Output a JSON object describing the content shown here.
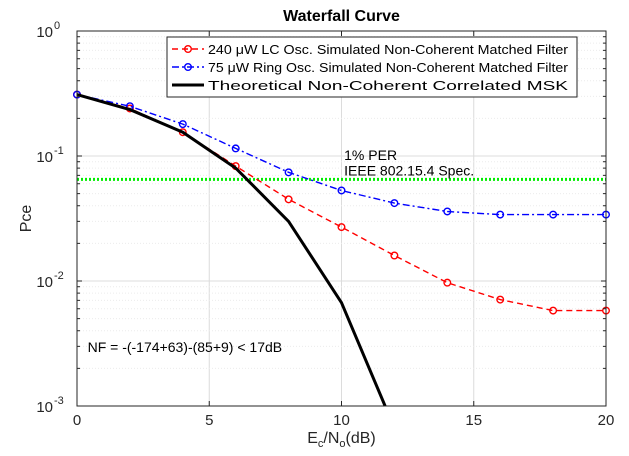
{
  "chart_data": {
    "type": "line",
    "title": "Waterfall Curve",
    "xlabel": {
      "main": "E",
      "sub1": "c",
      "mid": "/N",
      "sub2": "o",
      "tail": "(dB)"
    },
    "ylabel": "Pce",
    "xlim": [
      0,
      20
    ],
    "ylim": [
      0.001,
      1
    ],
    "yscale": "log",
    "grid": true,
    "legend_position": "top-right",
    "x_ticks": [
      "0",
      "5",
      "10",
      "15",
      "20"
    ],
    "y_ticks": [
      {
        "base": "10",
        "exp": "0",
        "value": 1
      },
      {
        "base": "10",
        "exp": "-1",
        "value": 0.1
      },
      {
        "base": "10",
        "exp": "-2",
        "value": 0.01
      },
      {
        "base": "10",
        "exp": "-3",
        "value": 0.001
      }
    ],
    "series": [
      {
        "name": "240 μW LC Osc. Simulated Non-Coherent Matched Filter",
        "color": "#ff0000",
        "dash": "dashed",
        "marker": "circle",
        "x": [
          0,
          2,
          4,
          6,
          8,
          10,
          12,
          14,
          16,
          18,
          20
        ],
        "y": [
          0.31,
          0.24,
          0.155,
          0.083,
          0.045,
          0.027,
          0.016,
          0.0097,
          0.0071,
          0.0058,
          0.0058
        ]
      },
      {
        "name": "75 μW Ring Osc. Simulated Non-Coherent Matched Filter",
        "color": "#0000ff",
        "dash": "dashdot",
        "marker": "circle",
        "x": [
          0,
          2,
          4,
          6,
          8,
          10,
          12,
          14,
          16,
          18,
          20
        ],
        "y": [
          0.31,
          0.25,
          0.18,
          0.115,
          0.074,
          0.053,
          0.042,
          0.036,
          0.034,
          0.034,
          0.034
        ]
      },
      {
        "name": "Theoretical Non-Coherent Correlated MSK",
        "color": "#000000",
        "dash": "solid",
        "marker": "none",
        "x": [
          0,
          2,
          4,
          6,
          8,
          10,
          11.65
        ],
        "y": [
          0.31,
          0.235,
          0.155,
          0.08,
          0.03,
          0.0067,
          0.001
        ]
      }
    ],
    "reference_line": {
      "y": 0.065,
      "color": "#00ee00",
      "style": "dotted"
    },
    "annotations": [
      {
        "id": "per",
        "text": "1% PER",
        "x": 10.1,
        "y": 0.093
      },
      {
        "id": "spec",
        "text": "IEEE 802.15.4 Spec.",
        "x": 10.1,
        "y": 0.07
      },
      {
        "id": "nf",
        "text": "NF = -(-174+63)-(85+9) < 17dB",
        "x": 0.4,
        "y": 0.0027
      }
    ]
  }
}
